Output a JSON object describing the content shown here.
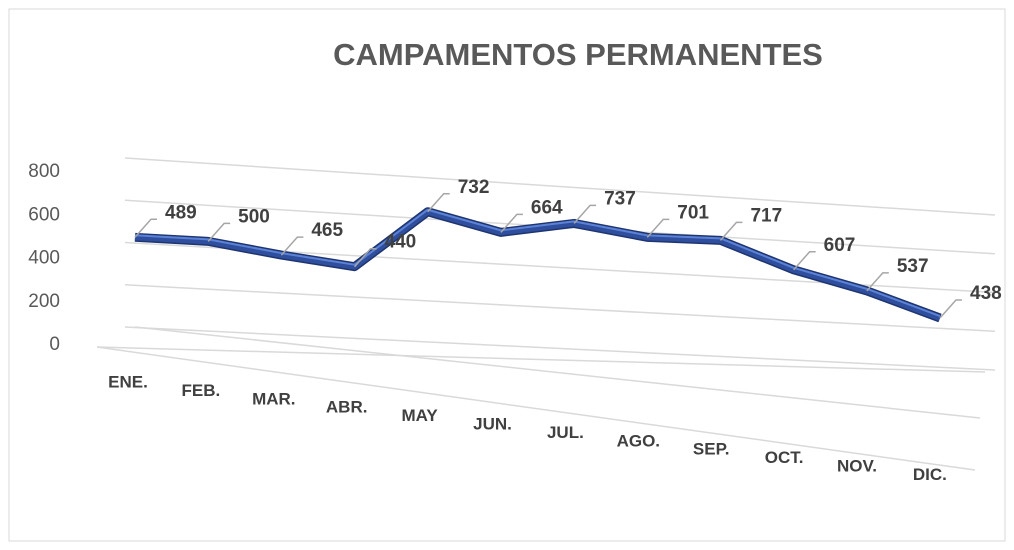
{
  "chart_data": {
    "type": "line",
    "title": "CAMPAMENTOS PERMANENTES",
    "categories": [
      "ENE.",
      "FEB.",
      "MAR.",
      "ABR.",
      "MAY",
      "JUN.",
      "JUL.",
      "AGO.",
      "SEP.",
      "OCT.",
      "NOV.",
      "DIC."
    ],
    "values": [
      489,
      500,
      465,
      440,
      732,
      664,
      737,
      701,
      717,
      607,
      537,
      438
    ],
    "color": "#2f4f9e",
    "ylim": [
      0,
      800
    ],
    "yticks": [
      0,
      200,
      400,
      600,
      800
    ],
    "grid": true
  }
}
